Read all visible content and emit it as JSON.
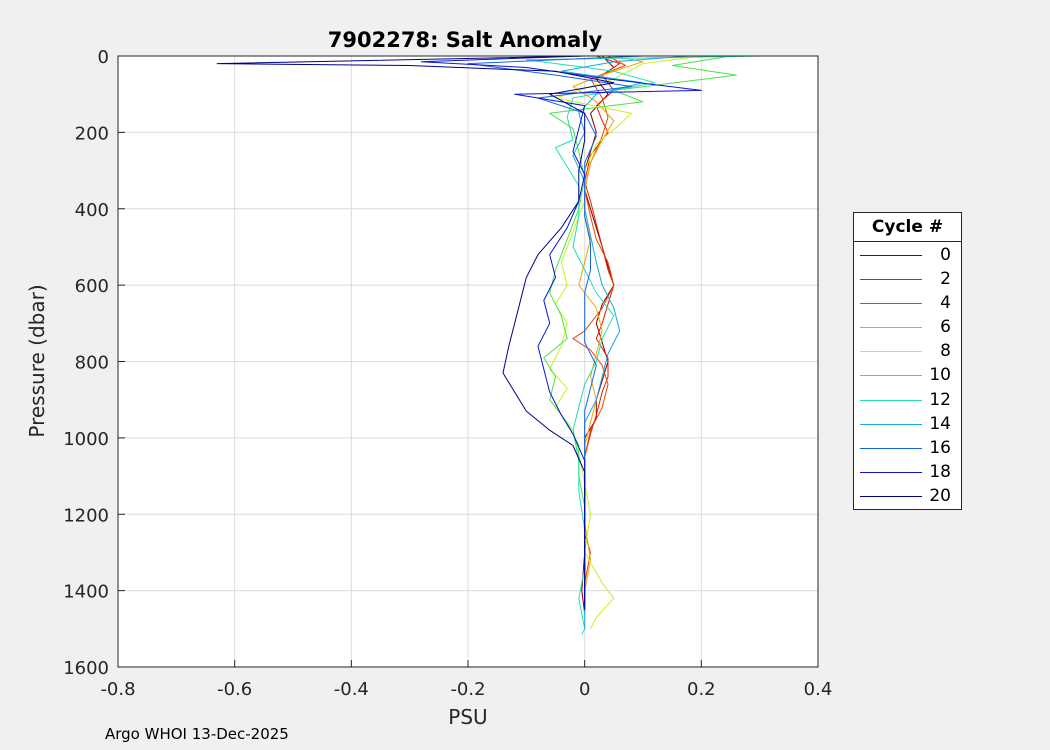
{
  "chart_data": {
    "type": "line",
    "title": "7902278: Salt Anomaly",
    "xlabel": "PSU",
    "ylabel": "Pressure (dbar)",
    "xlim": [
      -0.8,
      0.4
    ],
    "ylim": [
      0,
      1600
    ],
    "y_reversed": true,
    "grid": true,
    "x_ticks": [
      -0.8,
      -0.6,
      -0.4,
      -0.2,
      0,
      0.2,
      0.4
    ],
    "x_tick_labels": [
      "-0.8",
      "-0.6",
      "-0.4",
      "-0.2",
      "0",
      "0.2",
      "0.4"
    ],
    "y_ticks": [
      0,
      200,
      400,
      600,
      800,
      1000,
      1200,
      1400,
      1600
    ],
    "y_tick_labels": [
      "0",
      "200",
      "400",
      "600",
      "800",
      "1000",
      "1200",
      "1400",
      "1600"
    ],
    "legend_title": "Cycle #",
    "legend_position": "outside-right",
    "legend_entries": [
      {
        "label": "0",
        "color": "#800000"
      },
      {
        "label": "2",
        "color": "#e61b00"
      },
      {
        "label": "4",
        "color": "#e04a00"
      },
      {
        "label": "6",
        "color": "#f2a400"
      },
      {
        "label": "8",
        "color": "#c8f01c"
      },
      {
        "label": "10",
        "color": "#4de04d"
      },
      {
        "label": "12",
        "color": "#1ee0b0"
      },
      {
        "label": "14",
        "color": "#14a8e6"
      },
      {
        "label": "16",
        "color": "#1463e6"
      },
      {
        "label": "18",
        "color": "#0a14d2"
      },
      {
        "label": "20",
        "color": "#00008c"
      }
    ],
    "series": [
      {
        "name": "0",
        "color": "#800000",
        "points": [
          [
            0.03,
            0
          ],
          [
            0.05,
            30
          ],
          [
            0.02,
            60
          ],
          [
            0.04,
            100
          ],
          [
            0.01,
            150
          ],
          [
            0.02,
            200
          ],
          [
            0.0,
            300
          ],
          [
            0.0,
            350
          ],
          [
            0.01,
            400
          ],
          [
            0.02,
            450
          ],
          [
            0.03,
            500
          ],
          [
            0.04,
            550
          ],
          [
            0.05,
            600
          ],
          [
            0.03,
            650
          ],
          [
            0.02,
            700
          ],
          [
            0.03,
            750
          ],
          [
            0.04,
            800
          ],
          [
            0.03,
            850
          ],
          [
            0.02,
            900
          ],
          [
            0.02,
            950
          ],
          [
            0.0,
            1000
          ],
          [
            0.0,
            1100
          ],
          [
            0.0,
            1200
          ],
          [
            0.0,
            1300
          ],
          [
            -0.005,
            1400
          ],
          [
            0.0,
            1460
          ]
        ]
      },
      {
        "name": "2",
        "color": "#e61b00",
        "points": [
          [
            0.02,
            0
          ],
          [
            0.06,
            20
          ],
          [
            0.03,
            50
          ],
          [
            0.05,
            90
          ],
          [
            0.02,
            130
          ],
          [
            0.03,
            170
          ],
          [
            0.04,
            200
          ],
          [
            0.01,
            260
          ],
          [
            0.0,
            330
          ],
          [
            0.01,
            380
          ],
          [
            0.02,
            440
          ],
          [
            0.03,
            500
          ],
          [
            0.04,
            560
          ],
          [
            0.05,
            600
          ],
          [
            0.04,
            650
          ],
          [
            0.03,
            700
          ],
          [
            0.02,
            740
          ],
          [
            0.04,
            790
          ],
          [
            0.04,
            840
          ],
          [
            0.03,
            880
          ],
          [
            0.02,
            940
          ],
          [
            0.01,
            990
          ],
          [
            0.0,
            1050
          ],
          [
            0.0,
            1150
          ],
          [
            0.0,
            1250
          ],
          [
            0.0,
            1350
          ],
          [
            0.0,
            1420
          ]
        ]
      },
      {
        "name": "4",
        "color": "#e04a00",
        "points": [
          [
            0.04,
            0
          ],
          [
            0.07,
            25
          ],
          [
            0.01,
            60
          ],
          [
            0.03,
            110
          ],
          [
            0.04,
            160
          ],
          [
            0.03,
            210
          ],
          [
            0.01,
            280
          ],
          [
            0.0,
            350
          ],
          [
            0.01,
            420
          ],
          [
            0.02,
            480
          ],
          [
            0.04,
            540
          ],
          [
            0.05,
            600
          ],
          [
            0.03,
            660
          ],
          [
            0.0,
            720
          ],
          [
            -0.02,
            740
          ],
          [
            0.01,
            770
          ],
          [
            0.03,
            810
          ],
          [
            0.04,
            860
          ],
          [
            0.03,
            920
          ],
          [
            0.01,
            980
          ],
          [
            0.0,
            1050
          ],
          [
            0.0,
            1150
          ],
          [
            0.0,
            1250
          ],
          [
            0.01,
            1300
          ],
          [
            0.0,
            1380
          ]
        ]
      },
      {
        "name": "6",
        "color": "#f2a400",
        "points": [
          [
            0.05,
            0
          ],
          [
            0.1,
            15
          ],
          [
            0.03,
            50
          ],
          [
            -0.02,
            80
          ],
          [
            0.02,
            120
          ],
          [
            0.05,
            170
          ],
          [
            0.03,
            220
          ],
          [
            0.01,
            280
          ],
          [
            0.0,
            350
          ],
          [
            0.0,
            420
          ],
          [
            0.01,
            480
          ],
          [
            0.0,
            540
          ],
          [
            -0.01,
            600
          ],
          [
            0.02,
            660
          ],
          [
            0.03,
            720
          ],
          [
            0.02,
            780
          ],
          [
            0.01,
            840
          ],
          [
            0.02,
            900
          ],
          [
            0.01,
            960
          ],
          [
            0.0,
            1020
          ],
          [
            0.0,
            1120
          ],
          [
            0.0,
            1220
          ],
          [
            0.01,
            1320
          ],
          [
            0.0,
            1400
          ]
        ]
      },
      {
        "name": "8",
        "color": "#c8f01c",
        "points": [
          [
            0.2,
            0
          ],
          [
            0.1,
            20
          ],
          [
            0.05,
            60
          ],
          [
            -0.05,
            110
          ],
          [
            0.08,
            150
          ],
          [
            0.06,
            180
          ],
          [
            0.02,
            230
          ],
          [
            0.0,
            300
          ],
          [
            0.0,
            380
          ],
          [
            -0.02,
            460
          ],
          [
            -0.04,
            540
          ],
          [
            -0.03,
            600
          ],
          [
            -0.05,
            650
          ],
          [
            -0.03,
            700
          ],
          [
            -0.04,
            760
          ],
          [
            -0.06,
            820
          ],
          [
            -0.03,
            870
          ],
          [
            -0.05,
            920
          ],
          [
            -0.02,
            980
          ],
          [
            -0.01,
            1040
          ],
          [
            0.0,
            1120
          ],
          [
            0.01,
            1200
          ],
          [
            0.0,
            1300
          ],
          [
            0.03,
            1380
          ],
          [
            0.05,
            1420
          ],
          [
            0.02,
            1470
          ],
          [
            0.01,
            1500
          ]
        ]
      },
      {
        "name": "10",
        "color": "#4de04d",
        "points": [
          [
            0.25,
            0
          ],
          [
            0.15,
            25
          ],
          [
            0.26,
            50
          ],
          [
            0.05,
            90
          ],
          [
            0.1,
            120
          ],
          [
            -0.06,
            150
          ],
          [
            -0.02,
            190
          ],
          [
            -0.01,
            250
          ],
          [
            0.0,
            320
          ],
          [
            -0.01,
            400
          ],
          [
            -0.03,
            480
          ],
          [
            -0.05,
            560
          ],
          [
            -0.06,
            620
          ],
          [
            -0.04,
            680
          ],
          [
            -0.03,
            740
          ],
          [
            -0.07,
            790
          ],
          [
            -0.05,
            840
          ],
          [
            -0.06,
            900
          ],
          [
            -0.03,
            960
          ],
          [
            -0.01,
            1020
          ],
          [
            -0.01,
            1100
          ],
          [
            0.0,
            1180
          ],
          [
            0.0,
            1280
          ],
          [
            0.0,
            1380
          ],
          [
            0.0,
            1460
          ]
        ]
      },
      {
        "name": "12",
        "color": "#1ee0b0",
        "points": [
          [
            0.31,
            0
          ],
          [
            -0.1,
            10
          ],
          [
            0.05,
            40
          ],
          [
            0.12,
            70
          ],
          [
            -0.02,
            110
          ],
          [
            -0.03,
            160
          ],
          [
            -0.02,
            220
          ],
          [
            -0.05,
            240
          ],
          [
            -0.03,
            290
          ],
          [
            -0.01,
            340
          ],
          [
            -0.01,
            420
          ],
          [
            -0.02,
            500
          ],
          [
            0.0,
            560
          ],
          [
            0.02,
            620
          ],
          [
            0.05,
            680
          ],
          [
            0.03,
            740
          ],
          [
            0.02,
            800
          ],
          [
            0.0,
            860
          ],
          [
            -0.01,
            920
          ],
          [
            -0.02,
            980
          ],
          [
            -0.01,
            1060
          ],
          [
            -0.01,
            1140
          ],
          [
            0.0,
            1240
          ],
          [
            0.0,
            1340
          ],
          [
            -0.01,
            1420
          ],
          [
            0.0,
            1500
          ],
          [
            -0.005,
            1515
          ]
        ]
      },
      {
        "name": "14",
        "color": "#14a8e6",
        "points": [
          [
            0.18,
            0
          ],
          [
            0.05,
            15
          ],
          [
            -0.04,
            40
          ],
          [
            0.1,
            70
          ],
          [
            0.02,
            100
          ],
          [
            -0.01,
            150
          ],
          [
            0.0,
            200
          ],
          [
            -0.02,
            260
          ],
          [
            0.0,
            330
          ],
          [
            0.0,
            400
          ],
          [
            0.01,
            470
          ],
          [
            0.02,
            540
          ],
          [
            0.03,
            600
          ],
          [
            0.05,
            660
          ],
          [
            0.06,
            720
          ],
          [
            0.04,
            780
          ],
          [
            0.03,
            840
          ],
          [
            0.02,
            900
          ],
          [
            0.0,
            960
          ],
          [
            0.0,
            1040
          ],
          [
            0.0,
            1120
          ],
          [
            0.0,
            1220
          ],
          [
            0.0,
            1320
          ],
          [
            0.0,
            1420
          ],
          [
            0.0,
            1500
          ]
        ]
      },
      {
        "name": "16",
        "color": "#1463e6",
        "points": [
          [
            0.1,
            0
          ],
          [
            -0.2,
            20
          ],
          [
            -0.05,
            50
          ],
          [
            0.08,
            80
          ],
          [
            -0.08,
            110
          ],
          [
            0.0,
            150
          ],
          [
            0.02,
            210
          ],
          [
            0.0,
            280
          ],
          [
            0.0,
            350
          ],
          [
            0.0,
            420
          ],
          [
            0.01,
            490
          ],
          [
            0.01,
            560
          ],
          [
            0.0,
            620
          ],
          [
            0.0,
            690
          ],
          [
            0.0,
            750
          ],
          [
            0.02,
            810
          ],
          [
            0.01,
            870
          ],
          [
            0.0,
            930
          ],
          [
            0.0,
            1000
          ],
          [
            0.0,
            1080
          ],
          [
            0.0,
            1160
          ],
          [
            0.0,
            1260
          ],
          [
            0.0,
            1360
          ],
          [
            0.0,
            1450
          ]
        ]
      },
      {
        "name": "18",
        "color": "#0a14d2",
        "points": [
          [
            0.0,
            0
          ],
          [
            -0.28,
            15
          ],
          [
            -0.1,
            30
          ],
          [
            0.04,
            60
          ],
          [
            0.2,
            90
          ],
          [
            -0.12,
            100
          ],
          [
            0.0,
            130
          ],
          [
            -0.01,
            190
          ],
          [
            -0.02,
            250
          ],
          [
            0.0,
            310
          ],
          [
            -0.01,
            380
          ],
          [
            -0.03,
            450
          ],
          [
            -0.06,
            520
          ],
          [
            -0.05,
            580
          ],
          [
            -0.07,
            640
          ],
          [
            -0.06,
            700
          ],
          [
            -0.08,
            760
          ],
          [
            -0.07,
            820
          ],
          [
            -0.06,
            880
          ],
          [
            -0.04,
            940
          ],
          [
            -0.02,
            990
          ],
          [
            0.0,
            1060
          ],
          [
            0.0,
            1150
          ],
          [
            0.0,
            1250
          ],
          [
            0.0,
            1350
          ],
          [
            0.0,
            1440
          ]
        ]
      },
      {
        "name": "20",
        "color": "#00008c",
        "points": [
          [
            0.0,
            0
          ],
          [
            -0.63,
            20
          ],
          [
            -0.3,
            25
          ],
          [
            -0.05,
            40
          ],
          [
            0.05,
            70
          ],
          [
            -0.06,
            100
          ],
          [
            0.0,
            150
          ],
          [
            0.0,
            220
          ],
          [
            -0.01,
            300
          ],
          [
            -0.01,
            380
          ],
          [
            -0.04,
            450
          ],
          [
            -0.08,
            520
          ],
          [
            -0.1,
            580
          ],
          [
            -0.11,
            640
          ],
          [
            -0.12,
            700
          ],
          [
            -0.13,
            760
          ],
          [
            -0.14,
            830
          ],
          [
            -0.12,
            880
          ],
          [
            -0.1,
            930
          ],
          [
            -0.06,
            980
          ],
          [
            -0.02,
            1020
          ],
          [
            0.0,
            1090
          ],
          [
            0.0,
            1180
          ],
          [
            0.0,
            1280
          ],
          [
            0.0,
            1380
          ],
          [
            0.0,
            1450
          ]
        ]
      }
    ]
  },
  "footer": {
    "credit": "Argo WHOI 13-Dec-2025"
  }
}
